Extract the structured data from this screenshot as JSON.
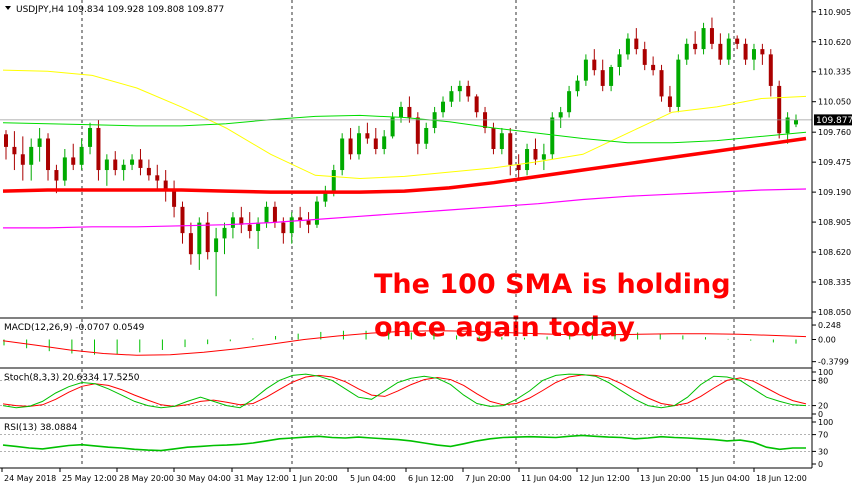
{
  "chart_data": {
    "type": "candlestick",
    "title": "USDJPY,H4 109.834 109.928 109.808 109.877",
    "annotation": [
      "The 100 SMA is holding",
      "once again today"
    ],
    "x_labels": [
      "24 May 2018",
      "25 May 12:00",
      "28 May 20:00",
      "30 May 04:00",
      "31 May 12:00",
      "1 Jun 20:00",
      "5 Jun 04:00",
      "6 Jun 12:00",
      "7 Jun 20:00",
      "11 Jun 04:00",
      "12 Jun 12:00",
      "13 Jun 20:00",
      "15 Jun 04:00",
      "18 Jun 12:00"
    ],
    "price": {
      "ticks": [
        "110.905",
        "110.620",
        "110.335",
        "110.050",
        "109.760",
        "109.475",
        "109.190",
        "108.905",
        "108.620",
        "108.335",
        "108.050"
      ],
      "current": "109.877",
      "current_value": 109.877,
      "ylim": [
        108.05,
        110.96
      ],
      "candles": [
        [
          109.74,
          109.78,
          109.5,
          109.62
        ],
        [
          109.62,
          109.77,
          109.4,
          109.55
        ],
        [
          109.55,
          109.72,
          109.3,
          109.45
        ],
        [
          109.45,
          109.7,
          109.3,
          109.62
        ],
        [
          109.62,
          109.8,
          109.48,
          109.7
        ],
        [
          109.7,
          109.75,
          109.3,
          109.4
        ],
        [
          109.4,
          109.45,
          109.18,
          109.3
        ],
        [
          109.3,
          109.6,
          109.25,
          109.52
        ],
        [
          109.52,
          109.65,
          109.4,
          109.45
        ],
        [
          109.45,
          109.7,
          109.4,
          109.62
        ],
        [
          109.62,
          109.85,
          109.55,
          109.8
        ],
        [
          109.8,
          109.88,
          109.3,
          109.4
        ],
        [
          109.4,
          109.55,
          109.25,
          109.5
        ],
        [
          109.5,
          109.58,
          109.35,
          109.4
        ],
        [
          109.4,
          109.5,
          109.3,
          109.45
        ],
        [
          109.45,
          109.55,
          109.4,
          109.5
        ],
        [
          109.5,
          109.6,
          109.35,
          109.42
        ],
        [
          109.42,
          109.5,
          109.3,
          109.35
        ],
        [
          109.35,
          109.45,
          109.2,
          109.3
        ],
        [
          109.3,
          109.4,
          109.1,
          109.2
        ],
        [
          109.2,
          109.3,
          108.95,
          109.05
        ],
        [
          109.05,
          109.1,
          108.7,
          108.8
        ],
        [
          108.8,
          108.9,
          108.5,
          108.6
        ],
        [
          108.6,
          108.95,
          108.45,
          108.9
        ],
        [
          108.9,
          109.0,
          108.55,
          108.62
        ],
        [
          108.62,
          108.85,
          108.2,
          108.75
        ],
        [
          108.75,
          108.9,
          108.6,
          108.85
        ],
        [
          108.85,
          109.0,
          108.75,
          108.95
        ],
        [
          108.95,
          109.05,
          108.8,
          108.88
        ],
        [
          108.88,
          109.0,
          108.75,
          108.82
        ],
        [
          108.82,
          108.95,
          108.65,
          108.9
        ],
        [
          108.9,
          109.1,
          108.85,
          109.05
        ],
        [
          109.05,
          109.1,
          108.85,
          108.9
        ],
        [
          108.9,
          108.95,
          108.7,
          108.8
        ],
        [
          108.8,
          109.0,
          108.7,
          108.95
        ],
        [
          108.95,
          109.05,
          108.85,
          108.92
        ],
        [
          108.92,
          109.0,
          108.8,
          108.88
        ],
        [
          108.88,
          109.15,
          108.85,
          109.1
        ],
        [
          109.1,
          109.25,
          109.05,
          109.2
        ],
        [
          109.2,
          109.45,
          109.15,
          109.4
        ],
        [
          109.4,
          109.75,
          109.35,
          109.7
        ],
        [
          109.7,
          109.8,
          109.5,
          109.55
        ],
        [
          109.55,
          109.82,
          109.5,
          109.75
        ],
        [
          109.75,
          109.85,
          109.65,
          109.7
        ],
        [
          109.7,
          109.8,
          109.55,
          109.6
        ],
        [
          109.6,
          109.78,
          109.55,
          109.72
        ],
        [
          109.72,
          109.95,
          109.7,
          109.9
        ],
        [
          109.9,
          110.05,
          109.85,
          110.0
        ],
        [
          110.0,
          110.1,
          109.85,
          109.9
        ],
        [
          109.9,
          109.95,
          109.55,
          109.65
        ],
        [
          109.65,
          109.85,
          109.6,
          109.8
        ],
        [
          109.8,
          110.0,
          109.75,
          109.95
        ],
        [
          109.95,
          110.1,
          109.9,
          110.05
        ],
        [
          110.05,
          110.2,
          110.0,
          110.15
        ],
        [
          110.15,
          110.25,
          110.05,
          110.2
        ],
        [
          110.2,
          110.25,
          110.05,
          110.1
        ],
        [
          110.1,
          110.12,
          109.9,
          109.95
        ],
        [
          109.95,
          110.0,
          109.75,
          109.8
        ],
        [
          109.8,
          109.85,
          109.55,
          109.6
        ],
        [
          109.6,
          109.8,
          109.55,
          109.75
        ],
        [
          109.75,
          109.8,
          109.35,
          109.45
        ],
        [
          109.45,
          109.55,
          109.3,
          109.4
        ],
        [
          109.4,
          109.65,
          109.35,
          109.6
        ],
        [
          109.6,
          109.7,
          109.45,
          109.5
        ],
        [
          109.5,
          109.65,
          109.4,
          109.55
        ],
        [
          109.55,
          109.95,
          109.5,
          109.9
        ],
        [
          109.9,
          110.0,
          109.8,
          109.95
        ],
        [
          109.95,
          110.2,
          109.9,
          110.15
        ],
        [
          110.15,
          110.3,
          110.1,
          110.25
        ],
        [
          110.25,
          110.5,
          110.2,
          110.45
        ],
        [
          110.45,
          110.55,
          110.3,
          110.35
        ],
        [
          110.35,
          110.45,
          110.15,
          110.2
        ],
        [
          110.2,
          110.4,
          110.15,
          110.38
        ],
        [
          110.38,
          110.55,
          110.3,
          110.5
        ],
        [
          110.5,
          110.7,
          110.45,
          110.65
        ],
        [
          110.65,
          110.75,
          110.5,
          110.55
        ],
        [
          110.55,
          110.62,
          110.35,
          110.4
        ],
        [
          110.4,
          110.48,
          110.3,
          110.35
        ],
        [
          110.35,
          110.4,
          110.05,
          110.1
        ],
        [
          110.1,
          110.2,
          109.95,
          110.0
        ],
        [
          110.0,
          110.5,
          109.95,
          110.45
        ],
        [
          110.45,
          110.65,
          110.4,
          110.6
        ],
        [
          110.6,
          110.72,
          110.5,
          110.55
        ],
        [
          110.55,
          110.8,
          110.5,
          110.75
        ],
        [
          110.75,
          110.85,
          110.55,
          110.6
        ],
        [
          110.6,
          110.7,
          110.4,
          110.45
        ],
        [
          110.45,
          110.7,
          110.4,
          110.65
        ],
        [
          110.65,
          110.68,
          110.55,
          110.6
        ],
        [
          110.6,
          110.65,
          110.4,
          110.45
        ],
        [
          110.45,
          110.6,
          110.35,
          110.55
        ],
        [
          110.55,
          110.6,
          110.4,
          110.5
        ],
        [
          110.5,
          110.55,
          110.1,
          110.2
        ],
        [
          110.2,
          110.25,
          109.7,
          109.75
        ],
        [
          109.75,
          109.95,
          109.65,
          109.9
        ],
        [
          109.834,
          109.928,
          109.808,
          109.877
        ]
      ],
      "sma100": [
        109.2,
        109.21,
        109.21,
        109.21,
        109.21,
        109.2,
        109.19,
        109.19,
        109.19,
        109.2,
        109.23,
        109.28,
        109.34,
        109.4,
        109.46,
        109.52,
        109.58,
        109.64,
        109.7
      ],
      "sma_yellow": [
        110.35,
        110.34,
        110.3,
        110.18,
        110.0,
        109.8,
        109.55,
        109.35,
        109.32,
        109.34,
        109.38,
        109.42,
        109.48,
        109.55,
        109.75,
        109.95,
        110.0,
        110.08,
        110.1
      ],
      "sma_green": [
        109.85,
        109.84,
        109.83,
        109.82,
        109.82,
        109.84,
        109.88,
        109.91,
        109.92,
        109.9,
        109.86,
        109.8,
        109.75,
        109.7,
        109.66,
        109.66,
        109.68,
        109.72,
        109.76
      ],
      "sma_magenta": [
        108.85,
        108.85,
        108.86,
        108.86,
        108.87,
        108.88,
        108.9,
        108.93,
        108.96,
        108.99,
        109.02,
        109.05,
        109.08,
        109.12,
        109.15,
        109.17,
        109.19,
        109.21,
        109.22
      ]
    },
    "macd": {
      "label": "MACD(12,26,9) -0.0707 0.0549",
      "ticks": [
        "0.248",
        "0.00",
        "-0.3799"
      ],
      "ylim": [
        -0.42,
        0.3
      ],
      "histogram": [
        -0.1,
        -0.15,
        -0.2,
        -0.24,
        -0.26,
        -0.25,
        -0.22,
        -0.18,
        -0.13,
        -0.08,
        -0.03,
        0.02,
        0.06,
        0.1,
        0.13,
        0.15,
        0.15,
        0.14,
        0.12,
        0.1,
        0.07,
        0.05,
        0.04,
        0.03,
        0.05,
        0.08,
        0.1,
        0.12,
        0.12,
        0.1,
        0.07,
        0.04,
        0.01,
        -0.02,
        -0.05,
        -0.07
      ],
      "signal": [
        -0.02,
        -0.1,
        -0.18,
        -0.24,
        -0.27,
        -0.26,
        -0.22,
        -0.16,
        -0.08,
        0.0,
        0.06,
        0.11,
        0.14,
        0.15,
        0.14,
        0.12,
        0.1,
        0.08,
        0.08,
        0.09,
        0.1,
        0.1,
        0.09,
        0.07,
        0.05
      ]
    },
    "stochastic": {
      "label": "Stoch(8,3,3) 20.6334 17.5250",
      "ticks": [
        "100",
        "80",
        "20",
        "0"
      ],
      "ylim": [
        0,
        100
      ],
      "main": [
        20,
        15,
        18,
        30,
        50,
        65,
        75,
        72,
        60,
        45,
        30,
        20,
        15,
        18,
        30,
        40,
        30,
        20,
        15,
        35,
        60,
        80,
        92,
        95,
        90,
        80,
        60,
        40,
        35,
        55,
        75,
        85,
        90,
        85,
        70,
        45,
        25,
        18,
        20,
        35,
        55,
        80,
        92,
        95,
        94,
        90,
        75,
        55,
        35,
        20,
        15,
        20,
        40,
        70,
        90,
        88,
        80,
        60,
        40,
        30,
        22,
        20
      ],
      "signal": [
        24,
        20,
        18,
        22,
        35,
        52,
        66,
        72,
        68,
        58,
        45,
        33,
        22,
        18,
        22,
        30,
        33,
        28,
        22,
        25,
        40,
        58,
        76,
        88,
        92,
        88,
        77,
        60,
        45,
        42,
        55,
        70,
        82,
        87,
        82,
        68,
        48,
        30,
        22,
        25,
        38,
        56,
        75,
        88,
        93,
        92,
        86,
        72,
        55,
        38,
        25,
        20,
        26,
        42,
        62,
        80,
        86,
        78,
        62,
        45,
        32,
        24
      ]
    },
    "rsi": {
      "label": "RSI(13) 38.0884",
      "ticks": [
        "100",
        "70",
        "30",
        "0"
      ],
      "ylim": [
        0,
        100
      ],
      "values": [
        45,
        42,
        38,
        36,
        40,
        44,
        46,
        43,
        40,
        38,
        35,
        33,
        32,
        36,
        40,
        42,
        44,
        45,
        47,
        50,
        55,
        60,
        62,
        64,
        66,
        63,
        62,
        64,
        62,
        60,
        58,
        55,
        50,
        45,
        42,
        48,
        55,
        60,
        63,
        64,
        65,
        64,
        63,
        66,
        68,
        66,
        64,
        63,
        60,
        62,
        65,
        63,
        62,
        60,
        58,
        55,
        57,
        52,
        40,
        35,
        38,
        38
      ]
    },
    "colors": {
      "bull": "#00aa00",
      "bear": "#aa0000",
      "sma100": "#ff0000",
      "sma_yellow": "#ffff00",
      "sma_green": "#00dd00",
      "sma_magenta": "#ff00ff",
      "annotation": "#ff0000",
      "indicator_main": "#00c000",
      "indicator_signal": "#ff0000"
    }
  }
}
